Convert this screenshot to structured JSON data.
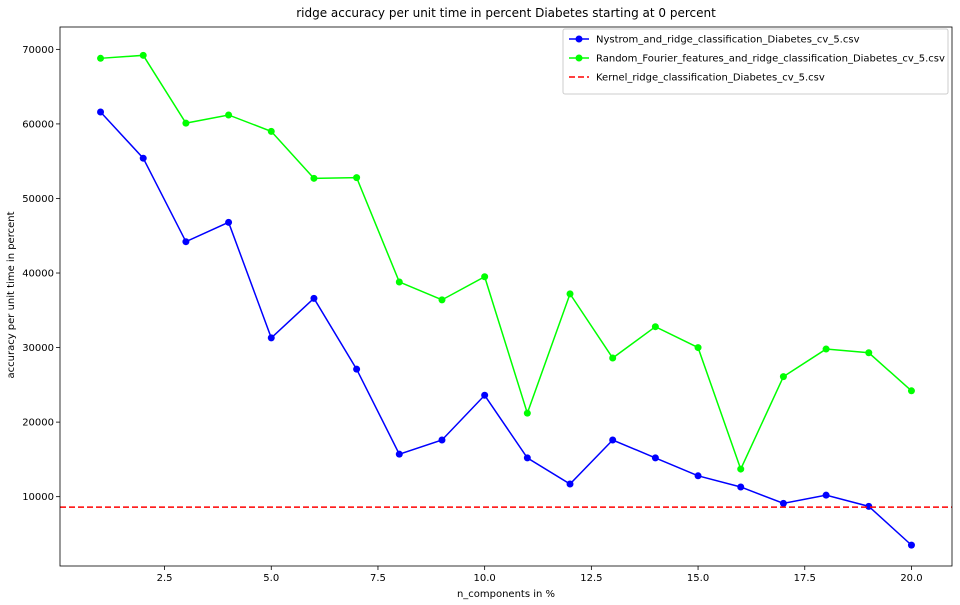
{
  "chart_data": {
    "type": "line",
    "title": "ridge accuracy per unit time in percent Diabetes starting at 0 percent",
    "xlabel": "n_components in %",
    "ylabel": "accuracy per unit time in percent",
    "xlim": [
      0.05,
      20.95
    ],
    "ylim": [
      700,
      73000
    ],
    "x_ticks": [
      2.5,
      5.0,
      7.5,
      10.0,
      12.5,
      15.0,
      17.5,
      20.0
    ],
    "x_tick_labels": [
      "2.5",
      "5.0",
      "7.5",
      "10.0",
      "12.5",
      "15.0",
      "17.5",
      "20.0"
    ],
    "y_ticks": [
      10000,
      20000,
      30000,
      40000,
      50000,
      60000,
      70000
    ],
    "y_tick_labels": [
      "10000",
      "20000",
      "30000",
      "40000",
      "50000",
      "60000",
      "70000"
    ],
    "grid": false,
    "legend_position": "top-right",
    "x": [
      1,
      2,
      3,
      4,
      5,
      6,
      7,
      8,
      9,
      10,
      11,
      12,
      13,
      14,
      15,
      16,
      17,
      18,
      19,
      20
    ],
    "series": [
      {
        "name": "Nystrom_and_ridge_classification_Diabetes_cv_5.csv",
        "color": "#0000ff",
        "style": "solid",
        "marker": "circle",
        "values": [
          61600,
          55400,
          44200,
          46800,
          31300,
          36600,
          27100,
          15700,
          17600,
          23600,
          15200,
          11700,
          17600,
          15200,
          12800,
          11300,
          9100,
          10200,
          8700,
          3500
        ]
      },
      {
        "name": "Random_Fourier_features_and_ridge_classification_Diabetes_cv_5.csv",
        "color": "#00ff00",
        "style": "solid",
        "marker": "circle",
        "values": [
          68800,
          69200,
          60100,
          61200,
          59000,
          52700,
          52800,
          38800,
          36400,
          39500,
          21200,
          37200,
          28600,
          32800,
          30000,
          13700,
          26100,
          29800,
          29300,
          24200
        ]
      },
      {
        "name": "Kernel_ridge_classification_Diabetes_cv_5.csv",
        "color": "#ff0000",
        "style": "dashed",
        "marker": "none",
        "constant": 8600
      }
    ]
  }
}
